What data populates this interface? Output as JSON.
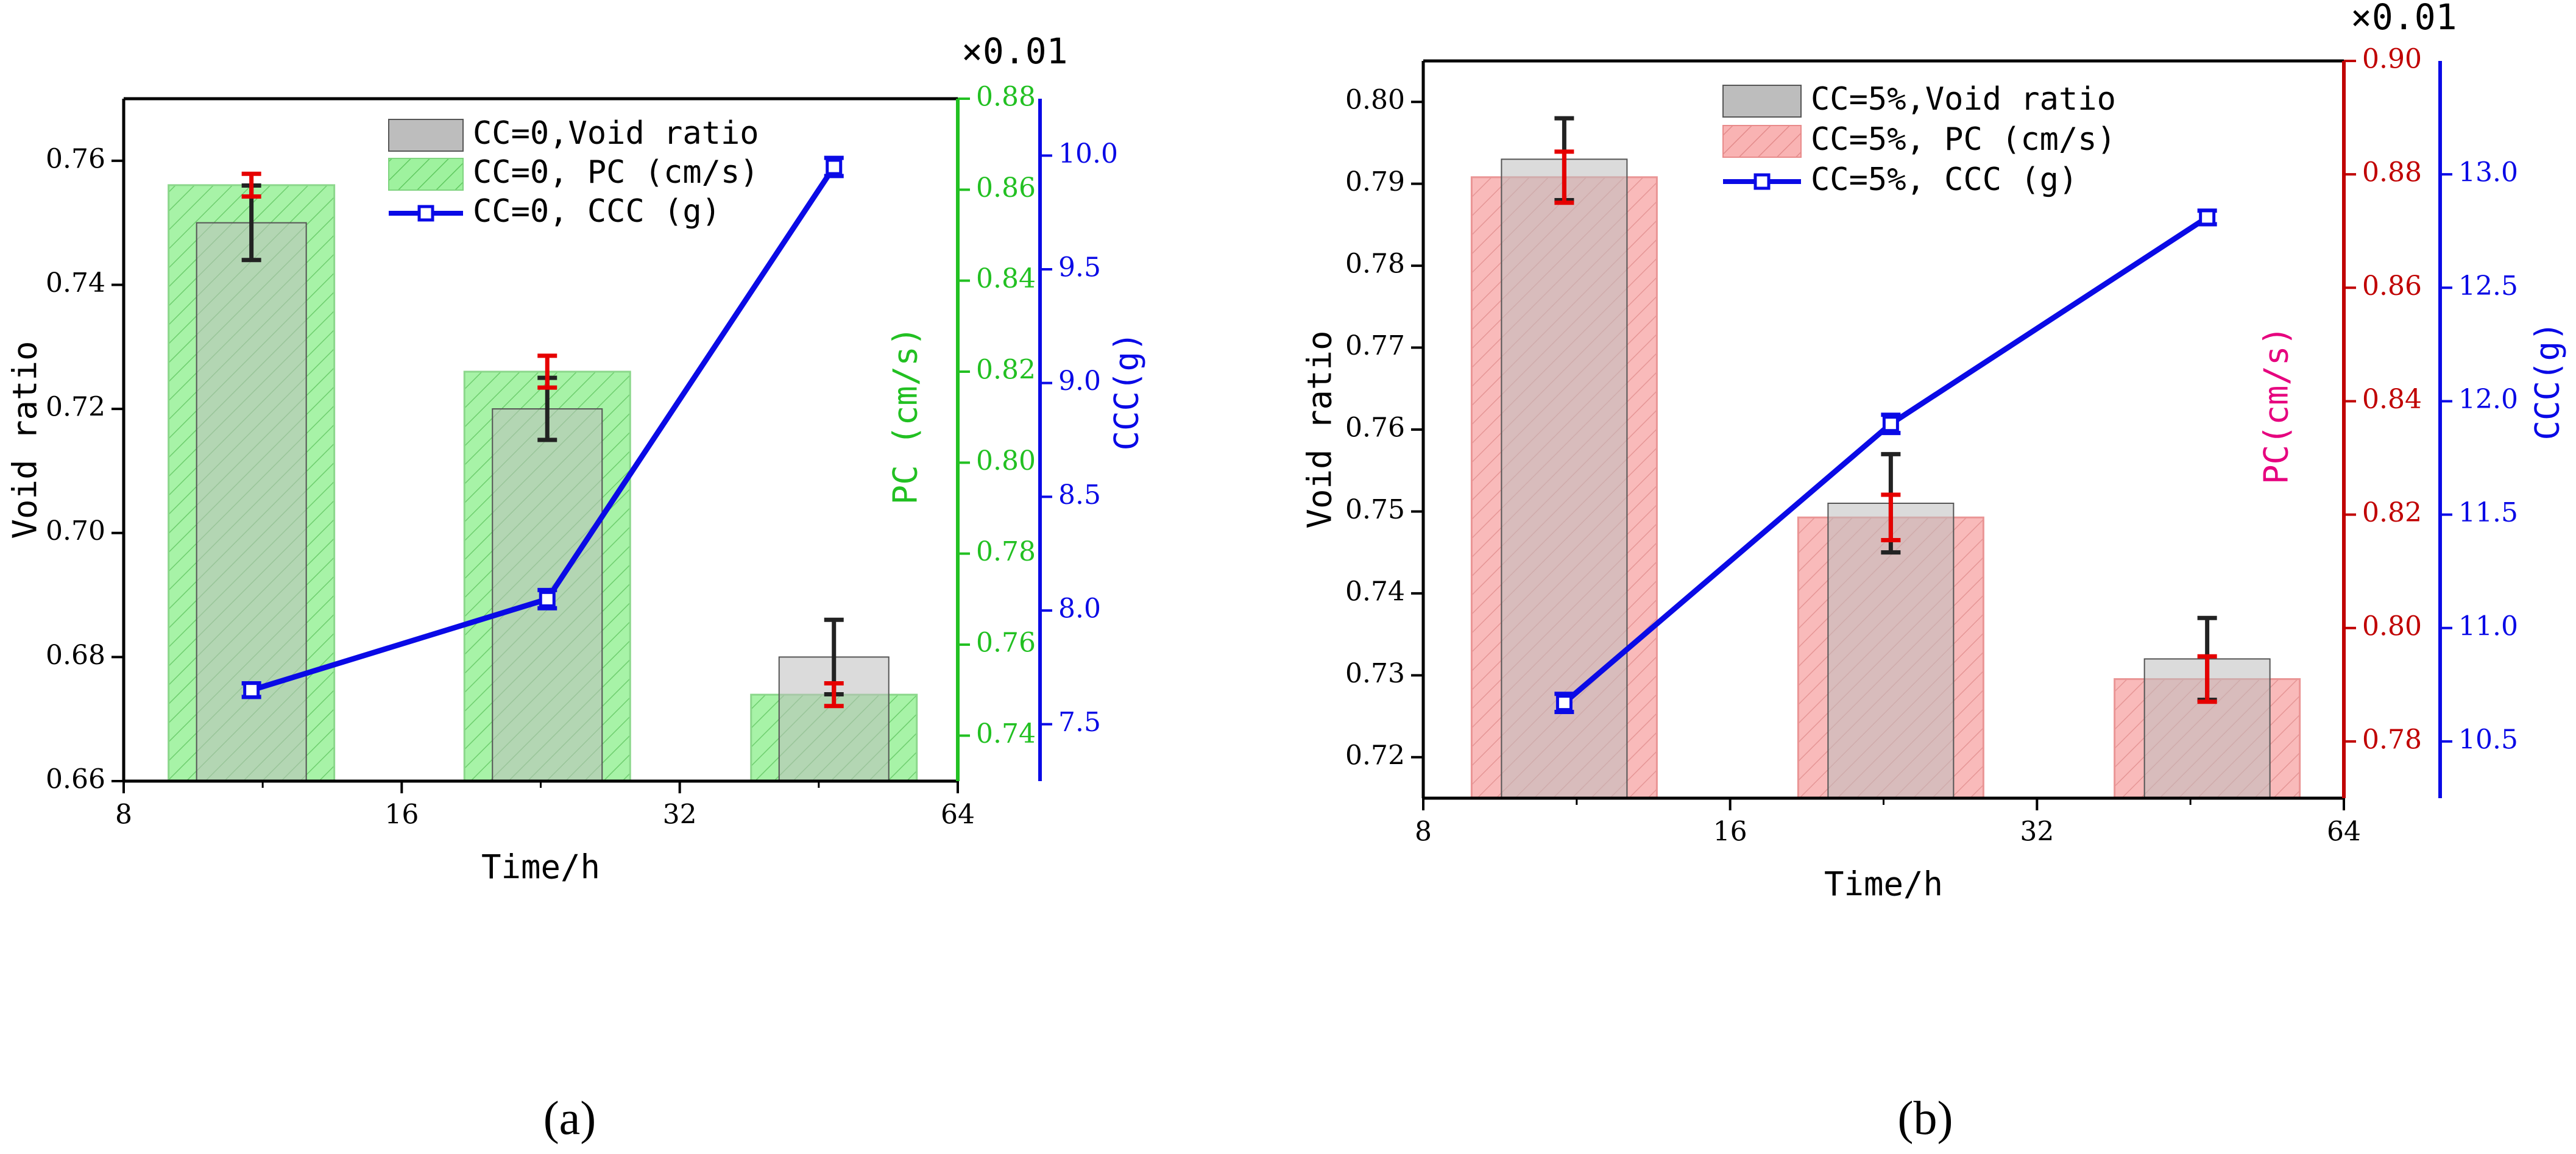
{
  "chart_data": [
    {
      "type": "bar",
      "panel_label": "(a)",
      "colors": {
        "void_bar": "#bdbdbd",
        "pc_bar": "#8ee88e",
        "pc_edge": "#7fd37f",
        "pc_axis": "#22c022",
        "ccc": "#0a0ae6",
        "void_err": "#222222",
        "pc_err": "#e60000"
      },
      "multiplier_label": "×0.01",
      "xlabel": "Time/h",
      "x_scale": "log2",
      "xlim": [
        8,
        64
      ],
      "x_ticks": [
        8,
        16,
        32,
        64
      ],
      "x_tick_labels": [
        "8",
        "16",
        "32",
        "64"
      ],
      "x": [
        11,
        23,
        47
      ],
      "axes": {
        "left": {
          "label": "Void ratio",
          "ylim": [
            0.66,
            0.77
          ],
          "ticks": [
            0.66,
            0.68,
            0.7,
            0.72,
            0.74,
            0.76
          ],
          "tick_labels": [
            "0.66",
            "0.68",
            "0.70",
            "0.72",
            "0.74",
            "0.76"
          ]
        },
        "right1": {
          "label": "PC (cm/s)",
          "ylim": [
            0.73,
            0.88
          ],
          "ticks": [
            0.74,
            0.76,
            0.78,
            0.8,
            0.82,
            0.84,
            0.86,
            0.88
          ],
          "tick_labels": [
            "0.74",
            "0.76",
            "0.78",
            "0.80",
            "0.82",
            "0.84",
            "0.86",
            "0.88"
          ]
        },
        "right2": {
          "label": "CCC(g)",
          "ylim": [
            7.25,
            10.25
          ],
          "ticks": [
            7.5,
            8.0,
            8.5,
            9.0,
            9.5,
            10.0
          ],
          "tick_labels": [
            "7.5",
            "8.0",
            "8.5",
            "9.0",
            "9.5",
            "10.0"
          ]
        }
      },
      "series": [
        {
          "name": "CC=0,Void ratio",
          "kind": "bar",
          "axis": "left",
          "values": [
            0.75,
            0.72,
            0.68
          ],
          "errors": [
            0.006,
            0.005,
            0.006
          ]
        },
        {
          "name": "CC=0, PC (cm/s)",
          "kind": "bar",
          "axis": "right1",
          "values": [
            0.861,
            0.82,
            0.749
          ],
          "errors": [
            0.0025,
            0.0035,
            0.0025
          ]
        },
        {
          "name": "CC=0, CCC (g)",
          "kind": "line",
          "axis": "right2",
          "values": [
            7.65,
            8.05,
            9.95
          ],
          "errors": [
            0.03,
            0.04,
            0.04
          ]
        }
      ],
      "legend": [
        "CC=0,Void ratio",
        "CC=0, PC (cm/s)",
        "CC=0, CCC (g)"
      ]
    },
    {
      "type": "bar",
      "panel_label": "(b)",
      "colors": {
        "void_bar": "#bdbdbd",
        "pc_bar": "#f7a9a9",
        "pc_edge": "#e88a8a",
        "pc_axis": "#c00000",
        "pc_label": "#e6007e",
        "ccc": "#0a0ae6",
        "void_err": "#222222",
        "pc_err": "#e60000"
      },
      "multiplier_label": "×0.01",
      "xlabel": "Time/h",
      "x_scale": "log2",
      "xlim": [
        8,
        64
      ],
      "x_ticks": [
        8,
        16,
        32,
        64
      ],
      "x_tick_labels": [
        "8",
        "16",
        "32",
        "64"
      ],
      "x": [
        11,
        23,
        47
      ],
      "axes": {
        "left": {
          "label": "Void ratio",
          "ylim": [
            0.715,
            0.805
          ],
          "ticks": [
            0.72,
            0.73,
            0.74,
            0.75,
            0.76,
            0.77,
            0.78,
            0.79,
            0.8
          ],
          "tick_labels": [
            "0.72",
            "0.73",
            "0.74",
            "0.75",
            "0.76",
            "0.77",
            "0.78",
            "0.79",
            "0.80"
          ]
        },
        "right1": {
          "label": "PC(cm/s)",
          "ylim": [
            0.77,
            0.9
          ],
          "ticks": [
            0.78,
            0.8,
            0.82,
            0.84,
            0.86,
            0.88,
            0.9
          ],
          "tick_labels": [
            "0.78",
            "0.80",
            "0.82",
            "0.84",
            "0.86",
            "0.88",
            "0.90"
          ]
        },
        "right2": {
          "label": "CCC(g)",
          "ylim": [
            10.25,
            13.5
          ],
          "ticks": [
            10.5,
            11.0,
            11.5,
            12.0,
            12.5,
            13.0
          ],
          "tick_labels": [
            "10.5",
            "11.0",
            "11.5",
            "12.0",
            "12.5",
            "13.0"
          ]
        }
      },
      "series": [
        {
          "name": "CC=5%,Void ratio",
          "kind": "bar",
          "axis": "left",
          "values": [
            0.793,
            0.751,
            0.732
          ],
          "errors": [
            0.005,
            0.006,
            0.005
          ]
        },
        {
          "name": "CC=5%, PC (cm/s)",
          "kind": "bar",
          "axis": "right1",
          "values": [
            0.8795,
            0.8195,
            0.791
          ],
          "errors": [
            0.0045,
            0.004,
            0.004
          ]
        },
        {
          "name": "CC=5%, CCC (g)",
          "kind": "line",
          "axis": "right2",
          "values": [
            10.67,
            11.9,
            12.81
          ],
          "errors": [
            0.04,
            0.04,
            0.03
          ]
        }
      ],
      "legend": [
        "CC=5%,Void ratio",
        "CC=5%, PC (cm/s)",
        "CC=5%, CCC (g)"
      ]
    }
  ]
}
